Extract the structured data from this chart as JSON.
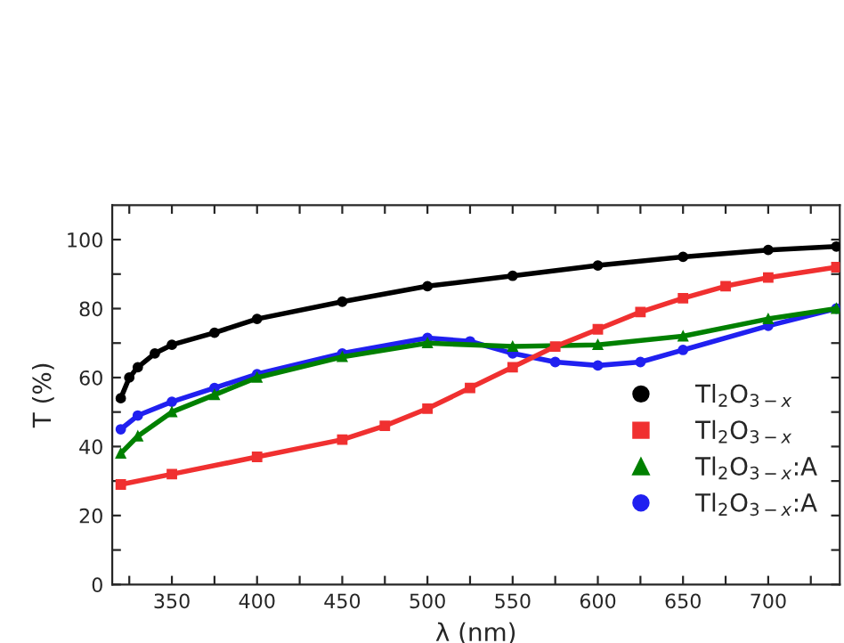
{
  "chart_data": {
    "type": "line",
    "xlabel": "λ (nm)",
    "ylabel": "T (%)",
    "xlim": [
      315,
      742
    ],
    "ylim": [
      0,
      110
    ],
    "xticks": [
      {
        "value": 325,
        "label": null
      },
      350,
      {
        "value": 375,
        "label": null
      },
      400,
      {
        "value": 425,
        "label": null
      },
      450,
      {
        "value": 475,
        "label": null
      },
      500,
      {
        "value": 525,
        "label": null
      },
      550,
      {
        "value": 575,
        "label": null
      },
      600,
      {
        "value": 625,
        "label": null
      },
      650,
      {
        "value": 675,
        "label": null
      },
      700,
      {
        "value": 725,
        "label": null
      }
    ],
    "yticks": [
      0,
      {
        "value": 10,
        "label": null
      },
      20,
      {
        "value": 30,
        "label": null
      },
      40,
      {
        "value": 50,
        "label": null
      },
      60,
      {
        "value": 70,
        "label": null
      },
      80,
      {
        "value": 90,
        "label": null
      },
      100
    ],
    "legend": "bottom right",
    "grid": false,
    "line_style": "solid",
    "series": [
      {
        "name": "Tl$_{2}$O$_{3−x}$",
        "color": "#000000",
        "marker": "circle",
        "x": [
          320,
          325,
          330,
          340,
          350,
          375,
          400,
          450,
          500,
          550,
          600,
          650,
          700,
          740
        ],
        "values": [
          54,
          60,
          63,
          67,
          69.5,
          73,
          77,
          82,
          86.5,
          89.5,
          92.5,
          95,
          97,
          98
        ]
      },
      {
        "name": "Tl$_{2}$O$_{3−x}$",
        "color": "#f03030",
        "marker": "square",
        "x": [
          320,
          350,
          400,
          450,
          475,
          500,
          525,
          550,
          575,
          600,
          625,
          650,
          675,
          700,
          740
        ],
        "values": [
          29,
          32,
          37,
          42,
          46,
          51,
          57,
          63,
          69,
          74,
          79,
          83,
          86.5,
          89,
          92
        ]
      },
      {
        "name": "Tl$_{2}$O$_{3−x}$:A",
        "color": "#008000",
        "marker": "triangle",
        "x": [
          320,
          330,
          350,
          375,
          400,
          450,
          500,
          550,
          600,
          650,
          700,
          740
        ],
        "values": [
          38,
          43,
          50,
          55,
          60,
          66,
          70,
          69,
          69.5,
          72,
          77,
          80
        ]
      },
      {
        "name": "Tl$_{2}$O$_{3−x}$:A",
        "color": "#2020f0",
        "marker": "circle",
        "x": [
          320,
          330,
          350,
          375,
          400,
          450,
          500,
          525,
          550,
          575,
          600,
          625,
          650,
          700,
          740
        ],
        "values": [
          45,
          49,
          53,
          57,
          61,
          67,
          71.5,
          70.5,
          67,
          64.5,
          63.5,
          64.5,
          68,
          75,
          80
        ]
      }
    ]
  }
}
